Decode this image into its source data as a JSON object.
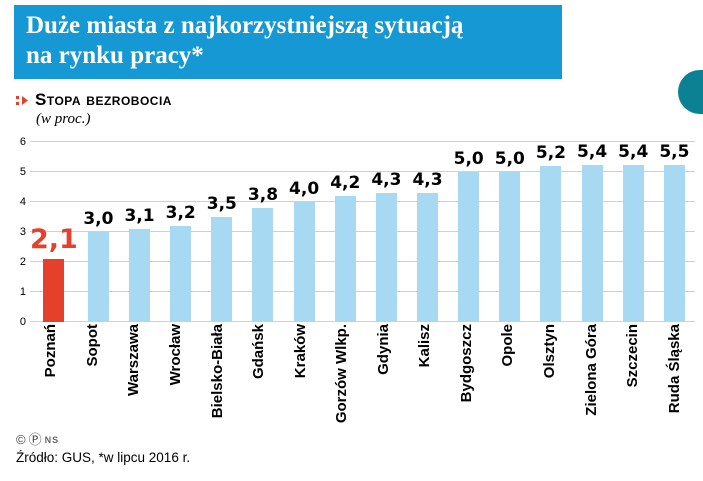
{
  "header": {
    "title_line1": "Duże miasta z najkorzystniejszą sytuacją",
    "title_line2": "na rynku pracy*"
  },
  "legend": {
    "title": "Stopa bezrobocia",
    "subtitle": "(w proc.)"
  },
  "chart_data": {
    "type": "bar",
    "title": "Stopa bezrobocia (w proc.)",
    "categories": [
      "Poznań",
      "Sopot",
      "Warszawa",
      "Wrocław",
      "Bielsko-Biała",
      "Gdańsk",
      "Kraków",
      "Gorzów Wlkp.",
      "Gdynia",
      "Kalisz",
      "Bydgoszcz",
      "Opole",
      "Olsztyn",
      "Zielona Góra",
      "Szczecin",
      "Ruda Śląska"
    ],
    "values": [
      2.1,
      3.0,
      3.1,
      3.2,
      3.5,
      3.8,
      4.0,
      4.2,
      4.3,
      4.3,
      5.0,
      5.0,
      5.2,
      5.4,
      5.4,
      5.5
    ],
    "value_labels": [
      "2,1",
      "3,0",
      "3,1",
      "3,2",
      "3,5",
      "3,8",
      "4,0",
      "4,2",
      "4,3",
      "4,3",
      "5,0",
      "5,0",
      "5,2",
      "5,4",
      "5,4",
      "5,5"
    ],
    "highlight_index": 0,
    "xlabel": "",
    "ylabel": "",
    "ylim": [
      0,
      6
    ],
    "ytick_step": 1,
    "grid": true,
    "legend_position": "none"
  },
  "colors": {
    "header_bg": "#1598d4",
    "bar": "#a7d9f2",
    "accent": "#e5402c",
    "grid": "#b9d7e8",
    "corner_tab": "#0b8193"
  },
  "footer": {
    "copyright_symbol": "©",
    "p_symbol": "Ⓟ",
    "agency": "NS",
    "source": "Źródło: GUS, *w lipcu 2016 r."
  }
}
